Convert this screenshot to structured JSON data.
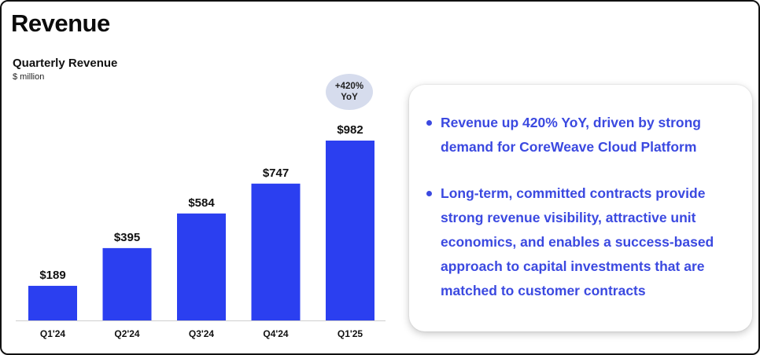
{
  "page": {
    "title": "Revenue"
  },
  "chart_data": {
    "type": "bar",
    "title": "Quarterly Revenue",
    "subtitle": "$ million",
    "categories": [
      "Q1'24",
      "Q2'24",
      "Q3'24",
      "Q4'24",
      "Q1'25"
    ],
    "values": [
      189,
      395,
      584,
      747,
      982
    ],
    "value_labels": [
      "$189",
      "$395",
      "$584",
      "$747",
      "$982"
    ],
    "ylim": [
      0,
      982
    ],
    "grid": false,
    "bar_color": "#2b3ff0",
    "annotation": {
      "line1": "+420%",
      "line2": "YoY",
      "color": "#d6dced"
    }
  },
  "panel": {
    "bullets": [
      "Revenue up 420% YoY, driven by strong demand for CoreWeave Cloud Platform",
      "Long-term, committed contracts provide strong revenue visibility, attractive unit economics, and enables a success-based approach to capital investments that are matched to customer contracts"
    ],
    "text_color": "#3b49e0"
  }
}
